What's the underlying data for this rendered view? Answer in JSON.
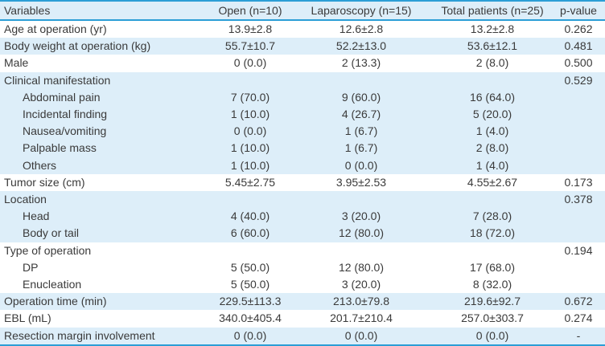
{
  "colors": {
    "accent_border": "#2b9ed6",
    "row_shade": "#ddeef9",
    "header_bg": "#ddeef9",
    "text": "#3a3a3a"
  },
  "table": {
    "columns": [
      "Variables",
      "Open (n=10)",
      "Laparoscopy (n=15)",
      "Total patients (n=25)",
      "p-value"
    ],
    "rows": [
      {
        "variable": "Age at operation (yr)",
        "open": "13.9±2.8",
        "laparoscopy": "12.6±2.8",
        "total": "13.2±2.8",
        "p_value": "0.262",
        "indent": false,
        "shaded": false
      },
      {
        "variable": "Body weight at operation (kg)",
        "open": "55.7±10.7",
        "laparoscopy": "52.2±13.0",
        "total": "53.6±12.1",
        "p_value": "0.481",
        "indent": false,
        "shaded": true
      },
      {
        "variable": "Male",
        "open": "0 (0.0)",
        "laparoscopy": "2 (13.3)",
        "total": "2 (8.0)",
        "p_value": "0.500",
        "indent": false,
        "shaded": false
      },
      {
        "variable": "Clinical manifestation",
        "open": "",
        "laparoscopy": "",
        "total": "",
        "p_value": "0.529",
        "indent": false,
        "shaded": true
      },
      {
        "variable": "Abdominal pain",
        "open": "7 (70.0)",
        "laparoscopy": "9 (60.0)",
        "total": "16 (64.0)",
        "p_value": "",
        "indent": true,
        "shaded": true
      },
      {
        "variable": "Incidental finding",
        "open": "1 (10.0)",
        "laparoscopy": "4 (26.7)",
        "total": "5 (20.0)",
        "p_value": "",
        "indent": true,
        "shaded": true
      },
      {
        "variable": "Nausea/vomiting",
        "open": "0 (0.0)",
        "laparoscopy": "1 (6.7)",
        "total": "1 (4.0)",
        "p_value": "",
        "indent": true,
        "shaded": true
      },
      {
        "variable": "Palpable mass",
        "open": "1 (10.0)",
        "laparoscopy": "1 (6.7)",
        "total": "2 (8.0)",
        "p_value": "",
        "indent": true,
        "shaded": true
      },
      {
        "variable": "Others",
        "open": "1 (10.0)",
        "laparoscopy": "0 (0.0)",
        "total": "1 (4.0)",
        "p_value": "",
        "indent": true,
        "shaded": true
      },
      {
        "variable": "Tumor size (cm)",
        "open": "5.45±2.75",
        "laparoscopy": "3.95±2.53",
        "total": "4.55±2.67",
        "p_value": "0.173",
        "indent": false,
        "shaded": false
      },
      {
        "variable": "Location",
        "open": "",
        "laparoscopy": "",
        "total": "",
        "p_value": "0.378",
        "indent": false,
        "shaded": true
      },
      {
        "variable": "Head",
        "open": "4 (40.0)",
        "laparoscopy": "3 (20.0)",
        "total": "7 (28.0)",
        "p_value": "",
        "indent": true,
        "shaded": true
      },
      {
        "variable": "Body or tail",
        "open": "6 (60.0)",
        "laparoscopy": "12 (80.0)",
        "total": "18 (72.0)",
        "p_value": "",
        "indent": true,
        "shaded": true
      },
      {
        "variable": "Type of operation",
        "open": "",
        "laparoscopy": "",
        "total": "",
        "p_value": "0.194",
        "indent": false,
        "shaded": false
      },
      {
        "variable": "DP",
        "open": "5 (50.0)",
        "laparoscopy": "12 (80.0)",
        "total": "17 (68.0)",
        "p_value": "",
        "indent": true,
        "shaded": false
      },
      {
        "variable": "Enucleation",
        "open": "5 (50.0)",
        "laparoscopy": "3 (20.0)",
        "total": "8 (32.0)",
        "p_value": "",
        "indent": true,
        "shaded": false
      },
      {
        "variable": "Operation time (min)",
        "open": "229.5±113.3",
        "laparoscopy": "213.0±79.8",
        "total": "219.6±92.7",
        "p_value": "0.672",
        "indent": false,
        "shaded": true
      },
      {
        "variable": "EBL (mL)",
        "open": "340.0±405.4",
        "laparoscopy": "201.7±210.4",
        "total": "257.0±303.7",
        "p_value": "0.274",
        "indent": false,
        "shaded": false
      },
      {
        "variable": "Resection margin involvement",
        "open": "0 (0.0)",
        "laparoscopy": "0 (0.0)",
        "total": "0 (0.0)",
        "p_value": "-",
        "indent": false,
        "shaded": true
      }
    ]
  }
}
